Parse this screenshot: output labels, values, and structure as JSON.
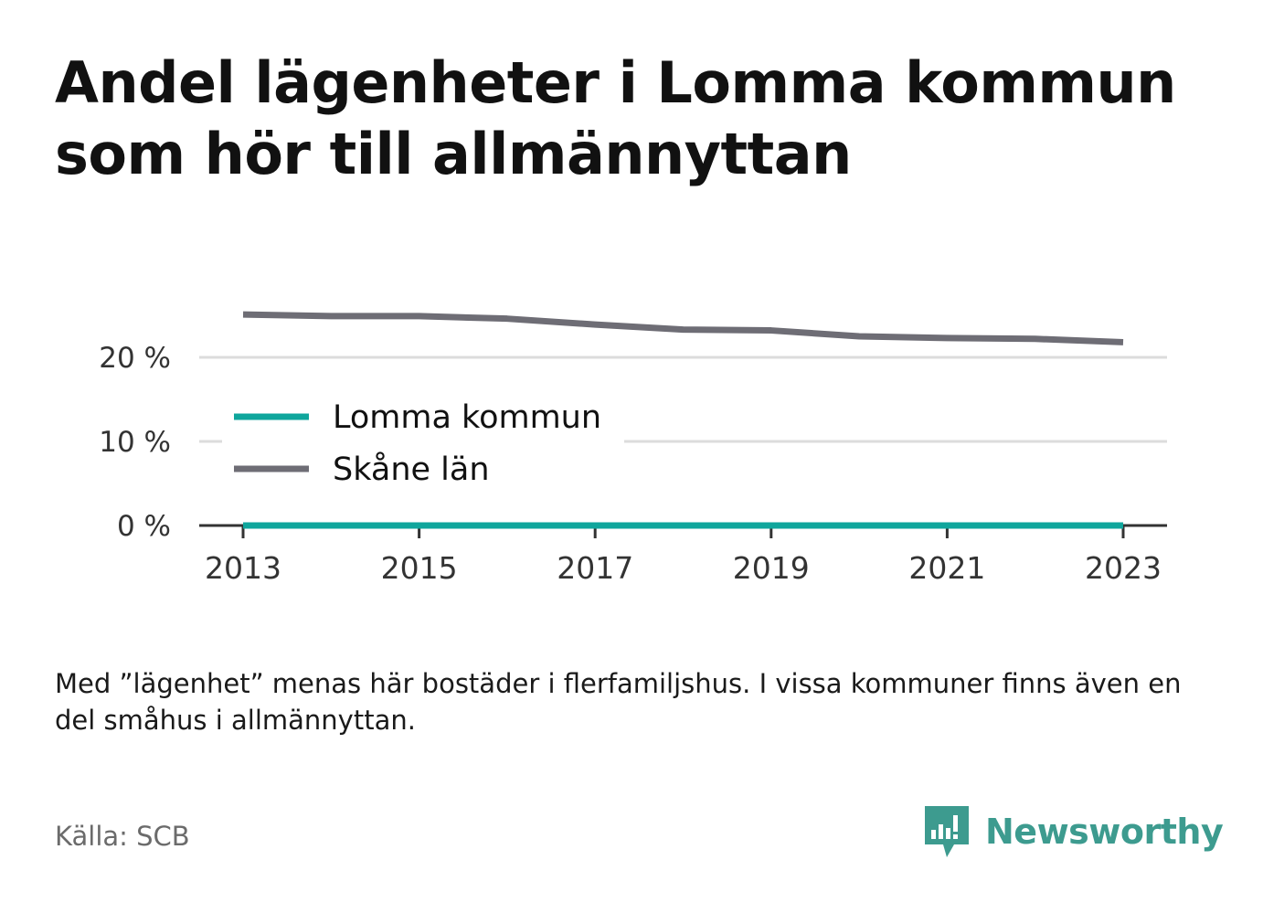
{
  "title": "Andel lägenheter i Lomma kommun som hör till allmännyttan",
  "note": "Med ”lägenhet” menas här bostäder i flerfamiljshus. I vissa kommuner finns även en del småhus i allmännyttan.",
  "source": "Källa: SCB",
  "brand": {
    "name": "Newsworthy",
    "icon": "newsworthy-logo-icon",
    "color": "#3d9b8f"
  },
  "chart_data": {
    "type": "line",
    "x": [
      2013,
      2014,
      2015,
      2016,
      2017,
      2018,
      2019,
      2020,
      2021,
      2022,
      2023
    ],
    "x_ticks": [
      "2013",
      "2015",
      "2017",
      "2019",
      "2021",
      "2023"
    ],
    "y_ticks": [
      "0 %",
      "10 %",
      "20 %"
    ],
    "ylim": [
      0,
      26
    ],
    "grid": true,
    "legend_position": "left",
    "series": [
      {
        "name": "Lomma kommun",
        "color": "#0fa69c",
        "values": [
          0,
          0,
          0,
          0,
          0,
          0,
          0,
          0,
          0,
          0,
          0
        ]
      },
      {
        "name": "Skåne län",
        "color": "#6e6d75",
        "values": [
          25.1,
          24.9,
          24.9,
          24.6,
          23.9,
          23.3,
          23.2,
          22.5,
          22.3,
          22.2,
          21.8
        ]
      }
    ]
  }
}
